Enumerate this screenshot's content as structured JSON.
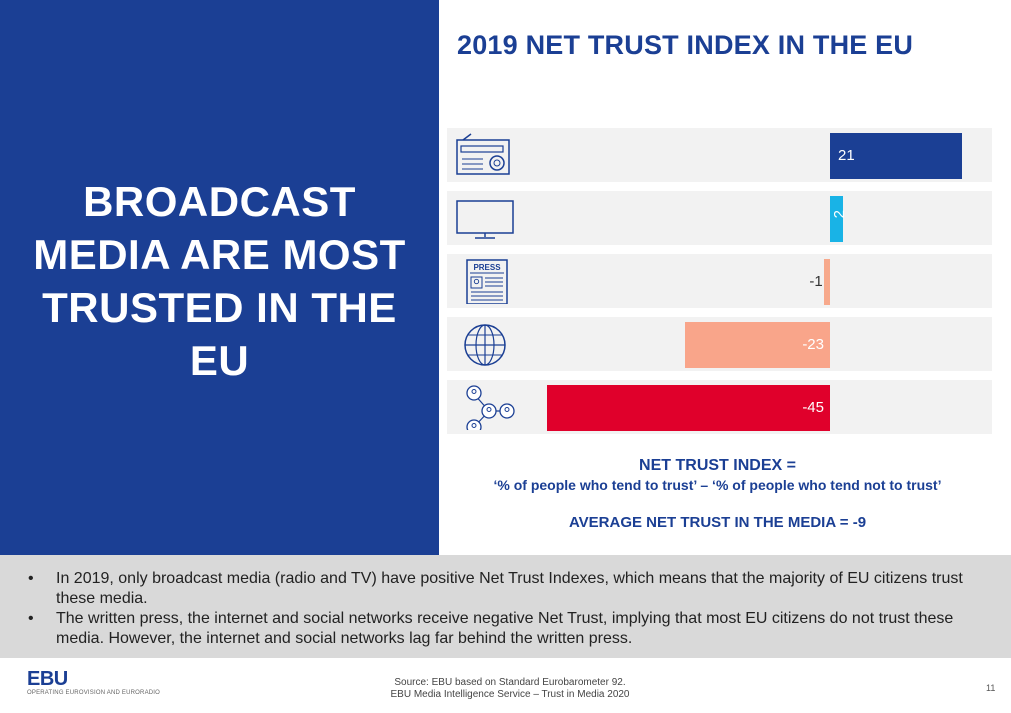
{
  "headline": [
    "BROADCAST",
    "MEDIA ARE MOST",
    "TRUSTED IN THE",
    "EU"
  ],
  "chart_data": {
    "type": "bar",
    "orientation": "horizontal",
    "title": "2019 NET TRUST INDEX IN THE EU",
    "categories": [
      "Radio",
      "Television",
      "Written press",
      "Internet",
      "Social networks"
    ],
    "category_icons": [
      "radio-icon",
      "tv-icon",
      "press-icon",
      "globe-icon",
      "social-network-icon"
    ],
    "values": [
      21,
      2,
      -1,
      -23,
      -45
    ],
    "value_labels": [
      "21",
      "2",
      "-1",
      "-23",
      "-45"
    ],
    "colors": [
      "#1b3f94",
      "#19b3e6",
      "#f7a98c",
      "#f9a58a",
      "#e0002b"
    ],
    "xlim": [
      -45,
      21
    ],
    "xlabel": "",
    "ylabel": ""
  },
  "formula": {
    "line1": "NET TRUST INDEX =",
    "line2": "‘% of people who tend to trust’ – ‘% of people who tend not to trust’",
    "average": "AVERAGE NET TRUST IN THE MEDIA = -9"
  },
  "bullets": [
    "In 2019, only broadcast media (radio and TV) have positive Net Trust Indexes, which means that the majority of EU citizens trust these media.",
    "The written press, the internet and social networks receive negative Net Trust, implying that most EU citizens do not trust these media. However, the internet and social networks lag far behind the written press."
  ],
  "footer": {
    "logo": "EBU",
    "tagline": "OPERATING EUROVISION AND EURORADIO",
    "source_line1": "Source: EBU based on Standard Eurobarometer 92.",
    "source_line2": "EBU Media Intelligence Service – Trust in Media 2020",
    "page_number": "11"
  }
}
